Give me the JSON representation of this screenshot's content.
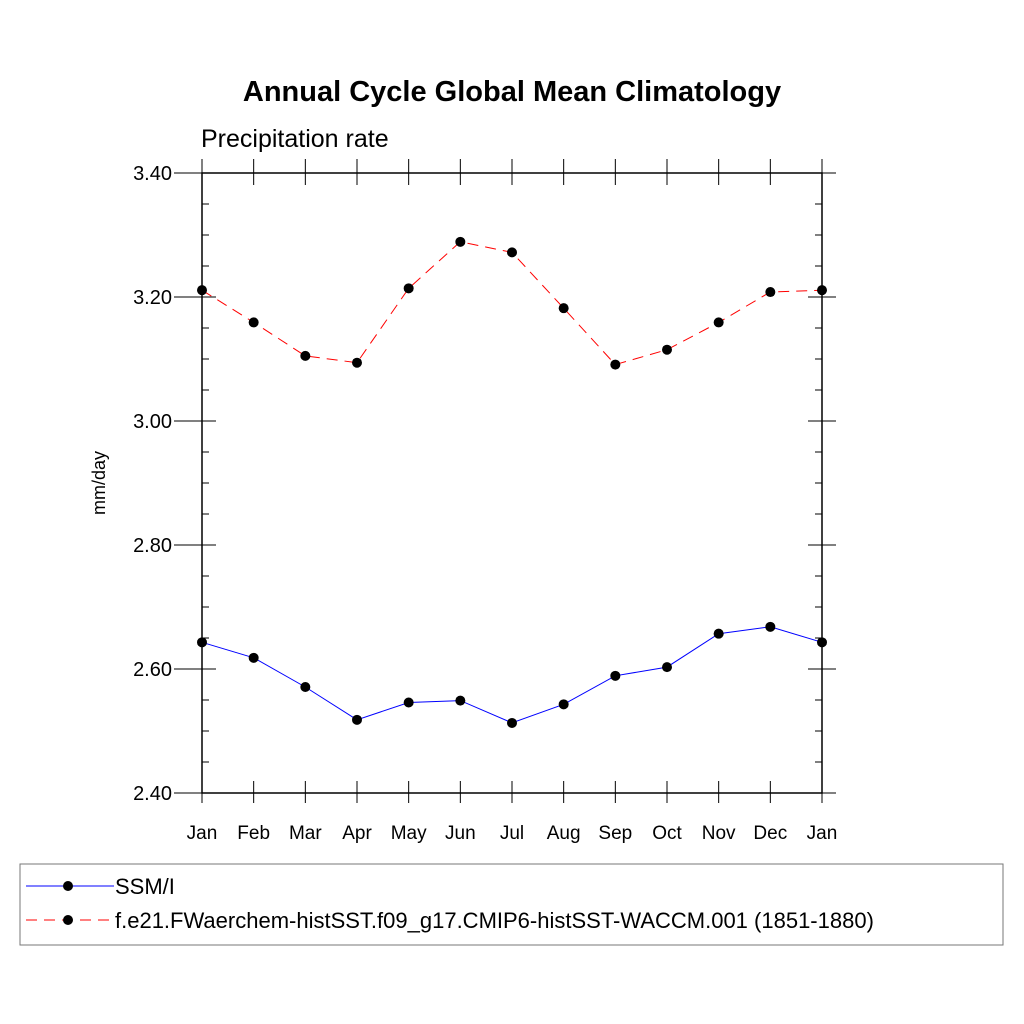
{
  "chart_data": {
    "type": "line",
    "title": "Annual Cycle Global Mean Climatology",
    "subtitle": "Precipitation rate",
    "xlabel": "",
    "ylabel": "mm/day",
    "categories": [
      "Jan",
      "Feb",
      "Mar",
      "Apr",
      "May",
      "Jun",
      "Jul",
      "Aug",
      "Sep",
      "Oct",
      "Nov",
      "Dec",
      "Jan"
    ],
    "ylim": [
      2.4,
      3.4
    ],
    "y_ticks": [
      "2.40",
      "2.60",
      "2.80",
      "3.00",
      "3.20",
      "3.40"
    ],
    "y_tick_values": [
      2.4,
      2.6,
      2.8,
      3.0,
      3.2,
      3.4
    ],
    "y_minor_step": 0.05,
    "grid": false,
    "legend_position": "bottom",
    "series": [
      {
        "name": "SSM/I",
        "color": "#0000ff",
        "line_style": "solid",
        "marker": "filled-circle",
        "values": [
          2.643,
          2.618,
          2.571,
          2.518,
          2.546,
          2.549,
          2.513,
          2.543,
          2.589,
          2.603,
          2.657,
          2.668,
          2.643
        ]
      },
      {
        "name": "f.e21.FWaerchem-histSST.f09_g17.CMIP6-histSST-WACCM.001 (1851-1880)",
        "color": "#ff0000",
        "line_style": "dashed",
        "marker": "filled-circle",
        "values": [
          3.211,
          3.159,
          3.105,
          3.094,
          3.214,
          3.289,
          3.272,
          3.182,
          3.091,
          3.115,
          3.159,
          3.208,
          3.211
        ]
      }
    ]
  }
}
